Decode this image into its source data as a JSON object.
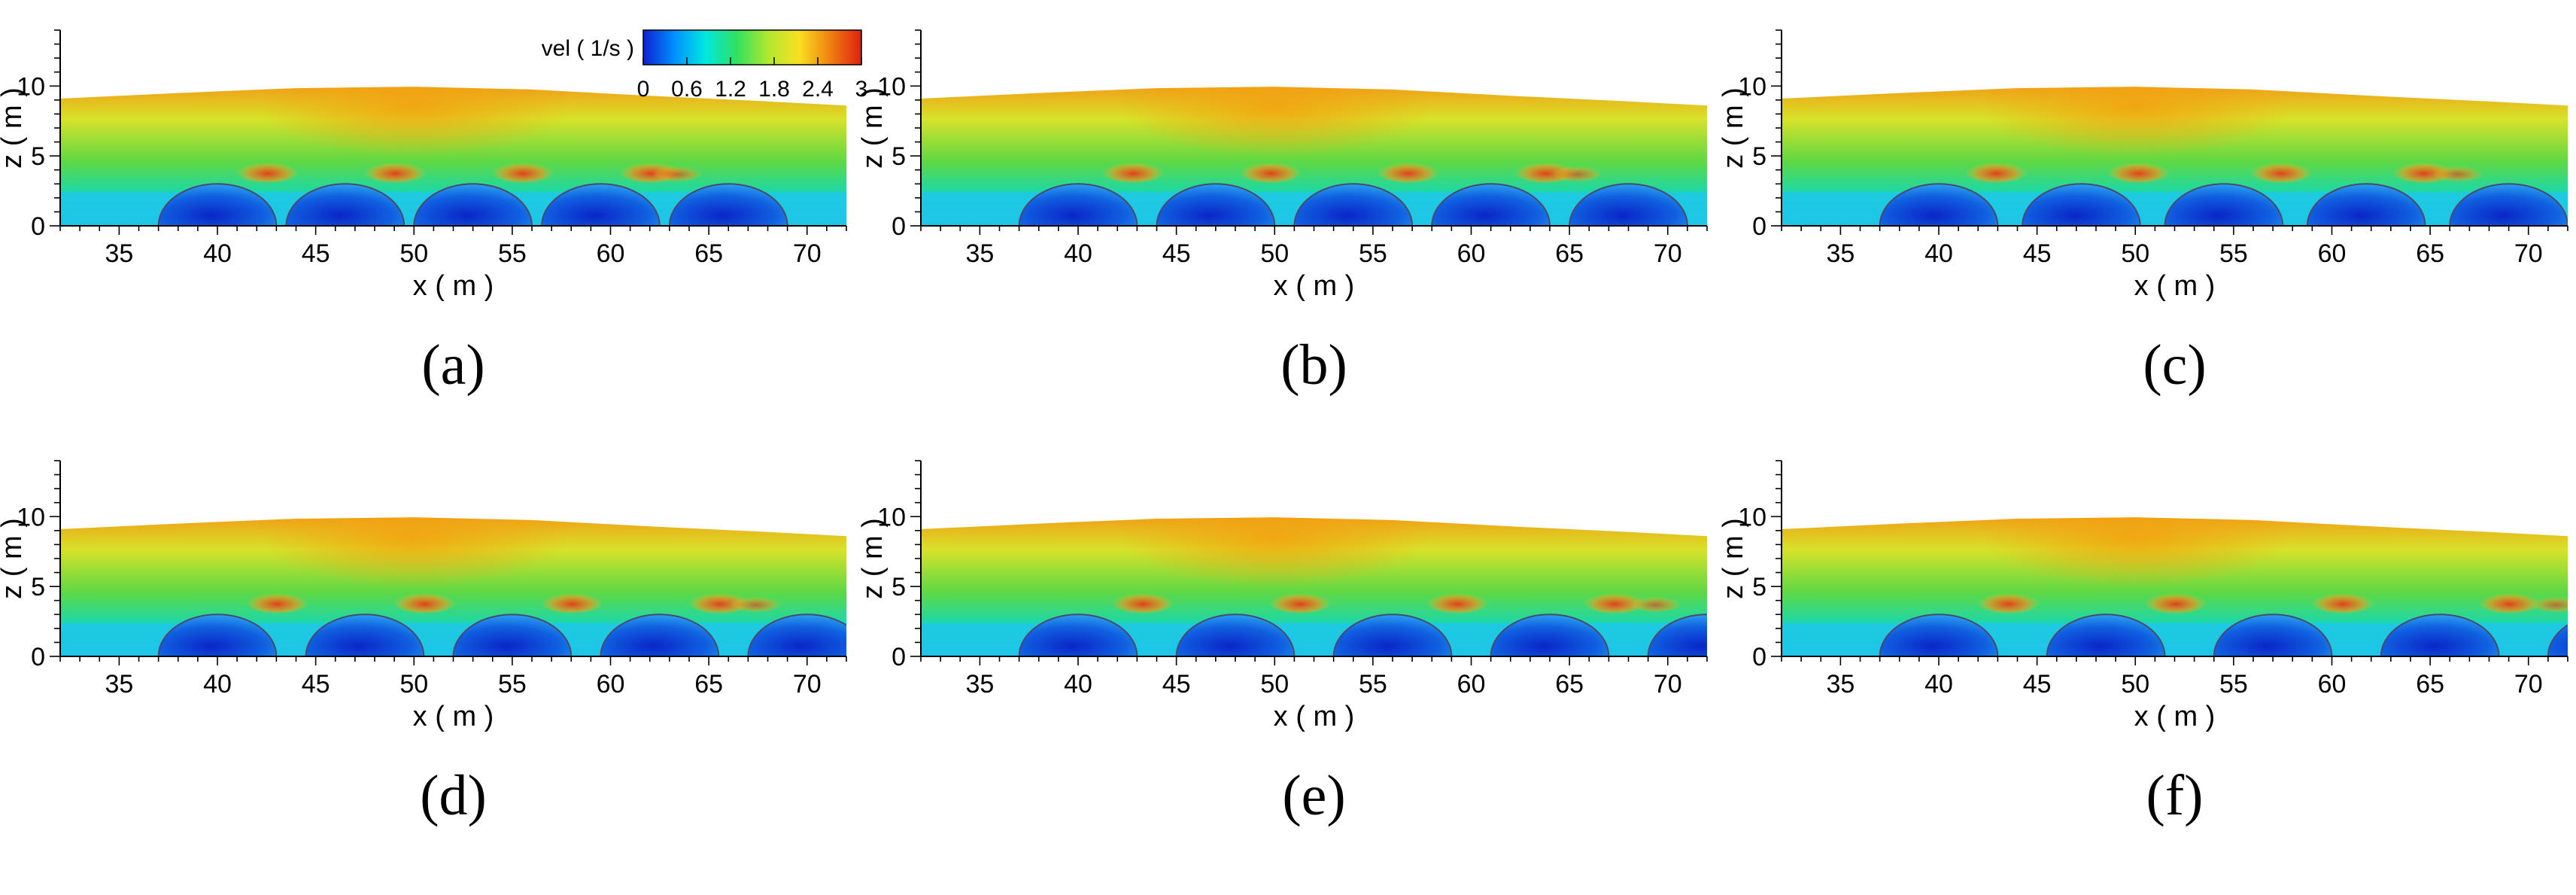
{
  "figure": {
    "colorbar": {
      "title": "vel ( 1/s )",
      "tick_labels": [
        "0",
        "0.6",
        "1.2",
        "1.8",
        "2.4",
        "3"
      ],
      "range": [
        0,
        3
      ],
      "colormap": [
        "#1020d0",
        "#0090ff",
        "#00e8e0",
        "#30e060",
        "#b0e830",
        "#f8e020",
        "#f08010",
        "#e02010"
      ]
    },
    "axis_style": {
      "xlabel": "x ( m )",
      "ylabel": "z ( m )",
      "x_ticks": [
        "35",
        "40",
        "45",
        "50",
        "55",
        "60",
        "65",
        "70"
      ],
      "y_ticks": [
        "0",
        "5",
        "10"
      ]
    }
  },
  "chart_data": [
    {
      "type": "heatmap",
      "panel": "(a)",
      "xlabel": "x ( m )",
      "ylabel": "z ( m )",
      "xlim": [
        32,
        72
      ],
      "ylim": [
        0,
        14
      ],
      "x_ticks": [
        35,
        40,
        45,
        50,
        55,
        60,
        65,
        70
      ],
      "y_ticks": [
        0,
        5,
        10
      ],
      "colorbar_title": "vel ( 1/s )",
      "colorbar_range": [
        0,
        3
      ],
      "free_surface": {
        "x": [
          32,
          38,
          44,
          50,
          56,
          62,
          68,
          72
        ],
        "z": [
          9.1,
          9.5,
          9.85,
          9.95,
          9.75,
          9.3,
          8.9,
          8.6
        ]
      },
      "units": [
        {
          "center_x": 40.0,
          "radius": 3.0
        },
        {
          "center_x": 46.5,
          "radius": 3.0
        },
        {
          "center_x": 53.0,
          "radius": 3.0
        },
        {
          "center_x": 59.5,
          "radius": 3.0
        },
        {
          "center_x": 66.0,
          "radius": 3.0
        }
      ]
    },
    {
      "type": "heatmap",
      "panel": "(b)",
      "xlabel": "x ( m )",
      "ylabel": "z ( m )",
      "xlim": [
        32,
        72
      ],
      "ylim": [
        0,
        14
      ],
      "x_ticks": [
        35,
        40,
        45,
        50,
        55,
        60,
        65,
        70
      ],
      "y_ticks": [
        0,
        5,
        10
      ],
      "colorbar_title": "vel ( 1/s )",
      "colorbar_range": [
        0,
        3
      ],
      "free_surface": {
        "x": [
          32,
          38,
          44,
          50,
          56,
          62,
          68,
          72
        ],
        "z": [
          9.1,
          9.5,
          9.85,
          9.95,
          9.75,
          9.3,
          8.9,
          8.6
        ]
      },
      "units": [
        {
          "center_x": 40.0,
          "radius": 3.0
        },
        {
          "center_x": 47.0,
          "radius": 3.0
        },
        {
          "center_x": 54.0,
          "radius": 3.0
        },
        {
          "center_x": 61.0,
          "radius": 3.0
        },
        {
          "center_x": 68.0,
          "radius": 3.0
        }
      ]
    },
    {
      "type": "heatmap",
      "panel": "(c)",
      "xlabel": "x ( m )",
      "ylabel": "z ( m )",
      "xlim": [
        32,
        72
      ],
      "ylim": [
        0,
        14
      ],
      "x_ticks": [
        35,
        40,
        45,
        50,
        55,
        60,
        65,
        70
      ],
      "y_ticks": [
        0,
        5,
        10
      ],
      "colorbar_title": "vel ( 1/s )",
      "colorbar_range": [
        0,
        3
      ],
      "free_surface": {
        "x": [
          32,
          38,
          44,
          50,
          56,
          62,
          68,
          72
        ],
        "z": [
          9.1,
          9.5,
          9.85,
          9.95,
          9.75,
          9.3,
          8.9,
          8.6
        ]
      },
      "units": [
        {
          "center_x": 40.0,
          "radius": 3.0
        },
        {
          "center_x": 47.25,
          "radius": 3.0
        },
        {
          "center_x": 54.5,
          "radius": 3.0
        },
        {
          "center_x": 61.75,
          "radius": 3.0
        },
        {
          "center_x": 69.0,
          "radius": 3.0
        }
      ]
    },
    {
      "type": "heatmap",
      "panel": "(d)",
      "xlabel": "x ( m )",
      "ylabel": "z ( m )",
      "xlim": [
        32,
        72
      ],
      "ylim": [
        0,
        14
      ],
      "x_ticks": [
        35,
        40,
        45,
        50,
        55,
        60,
        65,
        70
      ],
      "y_ticks": [
        0,
        5,
        10
      ],
      "colorbar_title": "vel ( 1/s )",
      "colorbar_range": [
        0,
        3
      ],
      "free_surface": {
        "x": [
          32,
          38,
          44,
          50,
          56,
          62,
          68,
          72
        ],
        "z": [
          9.1,
          9.5,
          9.85,
          9.95,
          9.75,
          9.3,
          8.9,
          8.6
        ]
      },
      "units": [
        {
          "center_x": 40.0,
          "radius": 3.0
        },
        {
          "center_x": 47.5,
          "radius": 3.0
        },
        {
          "center_x": 55.0,
          "radius": 3.0
        },
        {
          "center_x": 62.5,
          "radius": 3.0
        },
        {
          "center_x": 70.0,
          "radius": 3.0
        }
      ]
    },
    {
      "type": "heatmap",
      "panel": "(e)",
      "xlabel": "x ( m )",
      "ylabel": "z ( m )",
      "xlim": [
        32,
        72
      ],
      "ylim": [
        0,
        14
      ],
      "x_ticks": [
        35,
        40,
        45,
        50,
        55,
        60,
        65,
        70
      ],
      "y_ticks": [
        0,
        5,
        10
      ],
      "colorbar_title": "vel ( 1/s )",
      "colorbar_range": [
        0,
        3
      ],
      "free_surface": {
        "x": [
          32,
          38,
          44,
          50,
          56,
          62,
          68,
          72
        ],
        "z": [
          9.1,
          9.5,
          9.85,
          9.95,
          9.75,
          9.3,
          8.9,
          8.6
        ]
      },
      "units": [
        {
          "center_x": 40.0,
          "radius": 3.0
        },
        {
          "center_x": 48.0,
          "radius": 3.0
        },
        {
          "center_x": 56.0,
          "radius": 3.0
        },
        {
          "center_x": 64.0,
          "radius": 3.0
        },
        {
          "center_x": 72.0,
          "radius": 3.0
        }
      ]
    },
    {
      "type": "heatmap",
      "panel": "(f)",
      "xlabel": "x ( m )",
      "ylabel": "z ( m )",
      "xlim": [
        32,
        72
      ],
      "ylim": [
        0,
        14
      ],
      "x_ticks": [
        35,
        40,
        45,
        50,
        55,
        60,
        65,
        70
      ],
      "y_ticks": [
        0,
        5,
        10
      ],
      "colorbar_title": "vel ( 1/s )",
      "colorbar_range": [
        0,
        3
      ],
      "free_surface": {
        "x": [
          32,
          38,
          44,
          50,
          56,
          62,
          68,
          72
        ],
        "z": [
          9.1,
          9.5,
          9.85,
          9.95,
          9.75,
          9.3,
          8.9,
          8.6
        ]
      },
      "units": [
        {
          "center_x": 40.0,
          "radius": 3.0
        },
        {
          "center_x": 48.5,
          "radius": 3.0
        },
        {
          "center_x": 57.0,
          "radius": 3.0
        },
        {
          "center_x": 65.5,
          "radius": 3.0
        },
        {
          "center_x": 74.0,
          "radius": 3.0
        }
      ]
    }
  ]
}
